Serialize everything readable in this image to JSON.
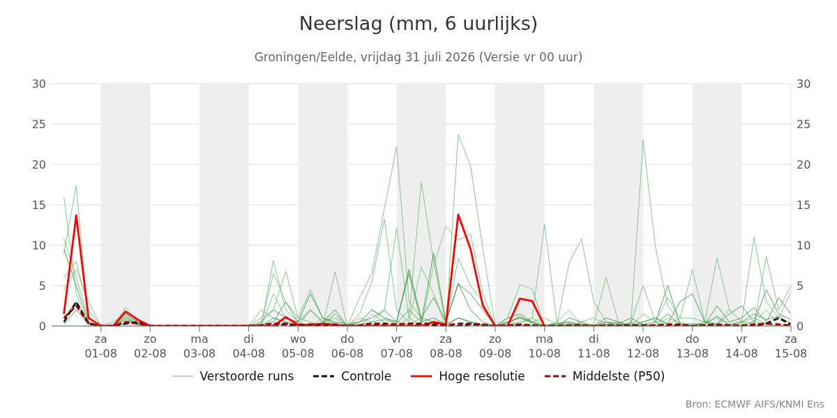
{
  "chart_data": {
    "type": "line",
    "title": "Neerslag (mm, 6 uurlijks)",
    "subtitle": "Groningen/Eelde, vrijdag 31 juli 2026 (Versie vr 00 uur)",
    "annotations": [
      "Bron: ECMWF AIFS/KNMI Ens"
    ],
    "x": [
      "2026-07-31T06:00",
      "2026-07-31T12:00",
      "2026-07-31T18:00",
      "2026-08-01T00:00",
      "2026-08-01T06:00",
      "2026-08-01T12:00",
      "2026-08-01T18:00",
      "2026-08-02T00:00",
      "2026-08-02T06:00",
      "2026-08-02T12:00",
      "2026-08-02T18:00",
      "2026-08-03T00:00",
      "2026-08-03T06:00",
      "2026-08-03T12:00",
      "2026-08-03T18:00",
      "2026-08-04T00:00",
      "2026-08-04T06:00",
      "2026-08-04T12:00",
      "2026-08-04T18:00",
      "2026-08-05T00:00",
      "2026-08-05T06:00",
      "2026-08-05T12:00",
      "2026-08-05T18:00",
      "2026-08-06T00:00",
      "2026-08-06T06:00",
      "2026-08-06T12:00",
      "2026-08-06T18:00",
      "2026-08-07T00:00",
      "2026-08-07T06:00",
      "2026-08-07T12:00",
      "2026-08-07T18:00",
      "2026-08-08T00:00",
      "2026-08-08T06:00",
      "2026-08-08T12:00",
      "2026-08-08T18:00",
      "2026-08-09T00:00",
      "2026-08-09T06:00",
      "2026-08-09T12:00",
      "2026-08-09T18:00",
      "2026-08-10T00:00",
      "2026-08-10T06:00",
      "2026-08-10T12:00",
      "2026-08-10T18:00",
      "2026-08-11T00:00",
      "2026-08-11T06:00",
      "2026-08-11T12:00",
      "2026-08-11T18:00",
      "2026-08-12T00:00",
      "2026-08-12T06:00",
      "2026-08-12T12:00",
      "2026-08-12T18:00",
      "2026-08-13T00:00",
      "2026-08-13T06:00",
      "2026-08-13T12:00",
      "2026-08-13T18:00",
      "2026-08-14T00:00",
      "2026-08-14T06:00",
      "2026-08-14T12:00",
      "2026-08-14T18:00",
      "2026-08-15T00:00"
    ],
    "xlim": [
      "2026-07-31T00:00",
      "2026-08-15T00:00"
    ],
    "xticks": [
      {
        "value": "2026-08-01",
        "label": "za\n01-08"
      },
      {
        "value": "2026-08-02",
        "label": "zo\n02-08"
      },
      {
        "value": "2026-08-03",
        "label": "ma\n03-08"
      },
      {
        "value": "2026-08-04",
        "label": "di\n04-08"
      },
      {
        "value": "2026-08-05",
        "label": "wo\n05-08"
      },
      {
        "value": "2026-08-06",
        "label": "do\n06-08"
      },
      {
        "value": "2026-08-07",
        "label": "vr\n07-08"
      },
      {
        "value": "2026-08-08",
        "label": "za\n08-08"
      },
      {
        "value": "2026-08-09",
        "label": "zo\n09-08"
      },
      {
        "value": "2026-08-10",
        "label": "ma\n10-08"
      },
      {
        "value": "2026-08-11",
        "label": "di\n11-08"
      },
      {
        "value": "2026-08-12",
        "label": "wo\n12-08"
      },
      {
        "value": "2026-08-13",
        "label": "do\n13-08"
      },
      {
        "value": "2026-08-14",
        "label": "vr\n14-08"
      },
      {
        "value": "2026-08-15",
        "label": "za\n15-08"
      }
    ],
    "ylim": [
      0,
      30
    ],
    "yticks": [
      0,
      5,
      10,
      15,
      20,
      25,
      30
    ],
    "y2lim": [
      0,
      30
    ],
    "y2ticks": [
      0,
      5,
      10,
      15,
      20,
      25,
      30
    ],
    "grid": "y",
    "legend": "bottom",
    "marker": "none",
    "bands": [
      {
        "axis": "x",
        "from": "2026-08-01",
        "to": "2026-08-02",
        "color": "#eeeeee"
      },
      {
        "axis": "x",
        "from": "2026-08-03",
        "to": "2026-08-04",
        "color": "#eeeeee"
      },
      {
        "axis": "x",
        "from": "2026-08-05",
        "to": "2026-08-06",
        "color": "#eeeeee"
      },
      {
        "axis": "x",
        "from": "2026-08-07",
        "to": "2026-08-08",
        "color": "#eeeeee"
      },
      {
        "axis": "x",
        "from": "2026-08-09",
        "to": "2026-08-10",
        "color": "#eeeeee"
      },
      {
        "axis": "x",
        "from": "2026-08-11",
        "to": "2026-08-12",
        "color": "#eeeeee"
      },
      {
        "axis": "x",
        "from": "2026-08-13",
        "to": "2026-08-14",
        "color": "#eeeeee"
      }
    ],
    "series": [
      {
        "name": "Verstoorde runs",
        "color": "#6dbf73",
        "line_style": "solid",
        "values": [
          16,
          4,
          0.5,
          0,
          0,
          1.5,
          0.5,
          0,
          0,
          0,
          0,
          0,
          0,
          0,
          0,
          0,
          2,
          1,
          0.5,
          0.2,
          0,
          0.5,
          1,
          0,
          3.5,
          6.6,
          14.5,
          22.2,
          3,
          1,
          0.5,
          0,
          1,
          0.5,
          0,
          0,
          0.5,
          0.2,
          0,
          0,
          0.3,
          0.5,
          0,
          0,
          0.5,
          0.3,
          0,
          0.5,
          1,
          0.2,
          0,
          0,
          0.5,
          0.2,
          0,
          0.3,
          0.5,
          0.2,
          0,
          0
        ]
      },
      {
        "color": "#6dbf73",
        "line_style": "solid",
        "values": [
          9,
          17.4,
          0.5,
          0,
          0,
          2.3,
          0.5,
          0,
          0,
          0,
          0,
          0,
          0,
          0,
          0,
          0,
          0.3,
          6.5,
          3,
          1,
          4.5,
          1,
          0.3,
          0,
          0.5,
          2,
          1,
          0.5,
          0.2,
          1,
          0.5,
          0,
          23.7,
          19.8,
          9.5,
          0,
          0,
          0.5,
          1,
          0,
          0.3,
          0,
          0.5,
          1,
          0.2,
          0,
          0.5,
          0.2,
          0,
          1,
          0.3,
          0,
          0.5,
          0,
          0.2,
          0.5,
          1,
          0.3,
          0,
          0
        ]
      },
      {
        "color": "#6dbf73",
        "line_style": "solid",
        "values": [
          10.8,
          6,
          1,
          0,
          0,
          1,
          0.3,
          0,
          0,
          0,
          0,
          0,
          0,
          0,
          0,
          0,
          0,
          8.1,
          2,
          0.5,
          0,
          1,
          0.2,
          0,
          0,
          1.5,
          0.5,
          0,
          1,
          17.8,
          8,
          0.2,
          1,
          0.5,
          0,
          0,
          0,
          0.3,
          1,
          12.6,
          0.5,
          0,
          0.3,
          0,
          0.2,
          0.5,
          0,
          23,
          9.8,
          2.5,
          0.5,
          0,
          0.5,
          1,
          0,
          0,
          0.5,
          2,
          0.2,
          0.1
        ]
      },
      {
        "color": "#6dbf73",
        "line_style": "solid",
        "values": [
          6,
          8,
          2,
          0,
          0.5,
          1.5,
          0.3,
          0,
          0,
          0,
          0,
          0,
          0,
          0,
          0,
          0,
          1,
          2,
          6.8,
          1,
          0.5,
          0,
          6.7,
          0,
          1,
          0.5,
          2,
          12.1,
          1,
          0,
          7.5,
          12.3,
          10.6,
          11.4,
          4,
          0,
          0.5,
          1,
          0.5,
          1,
          0.2,
          7.8,
          10.8,
          3,
          0.5,
          0,
          0.3,
          5,
          0.5,
          0.2,
          1,
          7,
          0.5,
          0.3,
          2,
          0.5,
          11,
          3,
          1,
          4.2
        ]
      },
      {
        "color": "#6dbf73",
        "line_style": "solid",
        "values": [
          4.5,
          7,
          3,
          0,
          0,
          1,
          0.2,
          0,
          0,
          0,
          0,
          0,
          0,
          0,
          0,
          0.2,
          0,
          4,
          1,
          0,
          2,
          0.5,
          0.3,
          0,
          1.5,
          5.5,
          13.2,
          2,
          0.5,
          7.3,
          4,
          0,
          8.4,
          5,
          3,
          0,
          1,
          5.1,
          4.6,
          0,
          0.5,
          2,
          0,
          0.3,
          6,
          0.5,
          0,
          1.5,
          0.5,
          3.5,
          1,
          1,
          0.5,
          8.4,
          2,
          0.5,
          0.3,
          8.6,
          2,
          5
        ]
      },
      {
        "color": "#2e9a3e",
        "line_style": "solid",
        "values": [
          9.5,
          5,
          0.5,
          0,
          0,
          1.5,
          0.5,
          0,
          0,
          0,
          0,
          0,
          0,
          0,
          0,
          0,
          0.5,
          2,
          1,
          0.5,
          4,
          1,
          0.5,
          0.2,
          0.5,
          1,
          2,
          0.5,
          7,
          1,
          3.5,
          0.5,
          5.2,
          4,
          2,
          0,
          1,
          1.5,
          0.5,
          0,
          0,
          1,
          0.5,
          0,
          1,
          0.5,
          0,
          0.5,
          1,
          0.3,
          3,
          4,
          0.5,
          0.2,
          1.5,
          2.5,
          0.5,
          4.5,
          1.5,
          0.8
        ]
      },
      {
        "color": "#2e9a3e",
        "line_style": "solid",
        "values": [
          1,
          3,
          0.3,
          0,
          0,
          0.8,
          0.2,
          0,
          0,
          0,
          0,
          0,
          0,
          0,
          0,
          0,
          0.2,
          0.5,
          3,
          0.5,
          2,
          0.5,
          2,
          0,
          0.5,
          2,
          1,
          0.5,
          6.5,
          0.5,
          9,
          0.5,
          5.3,
          2,
          0.5,
          0,
          0.5,
          1,
          0.5,
          0,
          0.3,
          0.5,
          0.2,
          0,
          0.5,
          0.3,
          1,
          0.2,
          0.5,
          5,
          0.2,
          0.3,
          0.2,
          2.5,
          0.5,
          1,
          2.3,
          0.5,
          3.5,
          1.5
        ]
      },
      {
        "color": "#2e9a3e",
        "line_style": "solid",
        "values": [
          0.2,
          2,
          0.2,
          0,
          0,
          1.2,
          0.2,
          0,
          0,
          0,
          0,
          0,
          0,
          0,
          0,
          0,
          0,
          1,
          0.5,
          0,
          0.3,
          0.2,
          1.5,
          0,
          0.2,
          0.5,
          0.8,
          0.3,
          2,
          0.5,
          1,
          0.2,
          1,
          0.5,
          0.2,
          0,
          0.3,
          1.2,
          0.3,
          0,
          0.1,
          0.3,
          0.1,
          0,
          0.2,
          0.1,
          0.3,
          0,
          0.2,
          1.5,
          0.2,
          0.1,
          0.2,
          1.2,
          0.2,
          0.5,
          1.5,
          0.8,
          1.2,
          0.3
        ]
      },
      {
        "name": "Controle",
        "color": "#111111",
        "line_style": "dashed",
        "values": [
          0.5,
          3,
          0.3,
          0,
          0,
          0.3,
          0.5,
          0,
          0,
          0,
          0,
          0,
          0,
          0,
          0,
          0,
          0,
          0.1,
          0.2,
          0,
          0,
          0.1,
          0.1,
          0,
          0,
          0.1,
          0.1,
          0,
          0,
          0.1,
          0.1,
          0,
          0,
          0.2,
          0.1,
          0,
          0,
          0.1,
          0,
          0,
          0,
          0,
          0,
          0,
          0,
          0,
          0.1,
          0,
          0,
          0,
          0.1,
          0,
          0.1,
          0,
          0,
          0,
          0,
          0.3,
          1,
          0.2
        ]
      },
      {
        "name": "Hoge resolutie",
        "color": "#ff0000",
        "line_style": "solid",
        "values": [
          1.5,
          13.7,
          1,
          0,
          0,
          1.8,
          0.8,
          0,
          0,
          0,
          0,
          0,
          0,
          0,
          0,
          0,
          0,
          0,
          1.1,
          0.2,
          0.1,
          0.3,
          0.1,
          0,
          0,
          0,
          0,
          0,
          0,
          0,
          0.5,
          0.2,
          13.8,
          9.5,
          2.5,
          0,
          0,
          3.4,
          3.1,
          0,
          null,
          null,
          null,
          null,
          null,
          null,
          null,
          null,
          null,
          null,
          null,
          null,
          null,
          null,
          null,
          null,
          null,
          null,
          null,
          null
        ]
      },
      {
        "name": "Middelste (P50)",
        "color": "#a00000",
        "line_style": "dashed",
        "values": [
          1,
          2.5,
          0.3,
          0,
          0,
          0.5,
          0.3,
          0,
          0,
          0,
          0,
          0,
          0,
          0,
          0,
          0,
          0.1,
          0.3,
          0.3,
          0.1,
          0.2,
          0.2,
          0.2,
          0,
          0.1,
          0.3,
          0.3,
          0.2,
          0.3,
          0.3,
          0.3,
          0.1,
          0.3,
          0.3,
          0.2,
          0,
          0.1,
          0.2,
          0.1,
          0,
          0,
          0.1,
          0.1,
          0,
          0.1,
          0.1,
          0,
          0.1,
          0.1,
          0.2,
          0.2,
          0,
          0.1,
          0.2,
          0.1,
          0.1,
          0.2,
          0.3,
          0.2,
          0.1
        ]
      }
    ]
  }
}
